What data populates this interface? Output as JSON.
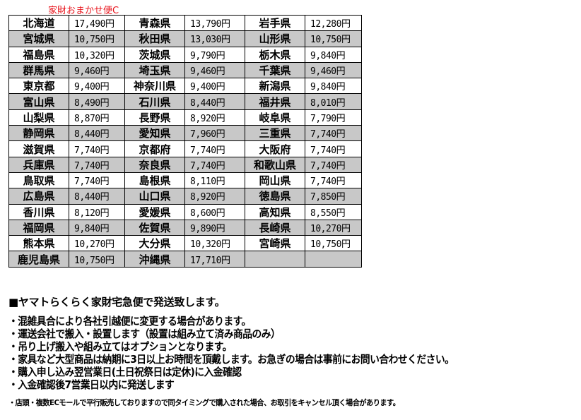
{
  "title": "家財おまかせ便C",
  "rows": [
    [
      [
        "北海道",
        "17,490円"
      ],
      [
        "青森県",
        "13,790円"
      ],
      [
        "岩手県",
        "12,280円"
      ]
    ],
    [
      [
        "宮城県",
        "10,750円"
      ],
      [
        "秋田県",
        "13,030円"
      ],
      [
        "山形県",
        "10,750円"
      ]
    ],
    [
      [
        "福島県",
        "10,320円"
      ],
      [
        "茨城県",
        "9,790円"
      ],
      [
        "栃木県",
        "9,840円"
      ]
    ],
    [
      [
        "群馬県",
        "9,460円"
      ],
      [
        "埼玉県",
        "9,460円"
      ],
      [
        "千葉県",
        "9,460円"
      ]
    ],
    [
      [
        "東京都",
        "9,400円"
      ],
      [
        "神奈川県",
        "9,400円"
      ],
      [
        "新潟県",
        "9,840円"
      ]
    ],
    [
      [
        "富山県",
        "8,490円"
      ],
      [
        "石川県",
        "8,440円"
      ],
      [
        "福井県",
        "8,010円"
      ]
    ],
    [
      [
        "山梨県",
        "8,870円"
      ],
      [
        "長野県",
        "8,920円"
      ],
      [
        "岐阜県",
        "7,790円"
      ]
    ],
    [
      [
        "静岡県",
        "8,440円"
      ],
      [
        "愛知県",
        "7,960円"
      ],
      [
        "三重県",
        "7,740円"
      ]
    ],
    [
      [
        "滋賀県",
        "7,740円"
      ],
      [
        "京都府",
        "7,740円"
      ],
      [
        "大阪府",
        "7,740円"
      ]
    ],
    [
      [
        "兵庫県",
        "7,740円"
      ],
      [
        "奈良県",
        "7,740円"
      ],
      [
        "和歌山県",
        "7,740円"
      ]
    ],
    [
      [
        "鳥取県",
        "7,740円"
      ],
      [
        "島根県",
        "8,110円"
      ],
      [
        "岡山県",
        "7,740円"
      ]
    ],
    [
      [
        "広島県",
        "8,440円"
      ],
      [
        "山口県",
        "8,920円"
      ],
      [
        "徳島県",
        "7,850円"
      ]
    ],
    [
      [
        "香川県",
        "8,120円"
      ],
      [
        "愛媛県",
        "8,600円"
      ],
      [
        "高知県",
        "8,550円"
      ]
    ],
    [
      [
        "福岡県",
        "9,840円"
      ],
      [
        "佐賀県",
        "9,890円"
      ],
      [
        "長崎県",
        "10,270円"
      ]
    ],
    [
      [
        "熊本県",
        "10,270円"
      ],
      [
        "大分県",
        "10,320円"
      ],
      [
        "宮崎県",
        "10,750円"
      ]
    ],
    [
      [
        "鹿児島県",
        "10,750円"
      ],
      [
        "沖縄県",
        "17,710円"
      ],
      [
        "",
        ""
      ]
    ]
  ],
  "notes": {
    "heading": "■ヤマトらくらく家財宅急便で発送致します。",
    "lines": [
      "・混雑具合により各社引越便に変更する場合があります。",
      "・運送会社で搬入・設置します（設置は組み立て済み商品のみ）",
      "・吊り上げ搬入や組み立てはオプションとなります。",
      "・家具など大型商品は納期に3日以上お時間を頂戴します。お急ぎの場合は事前にお問い合わせください。",
      "・購入申し込み翌営業日(土日祝祭日は定休)に入金確認",
      "・入金確認後7営業日以内に発送します"
    ],
    "small": "・店頭・複数ECモールで平行販売しておりますので同タイミングで購入された場合、お取引をキャンセル頂く場合があります。"
  }
}
